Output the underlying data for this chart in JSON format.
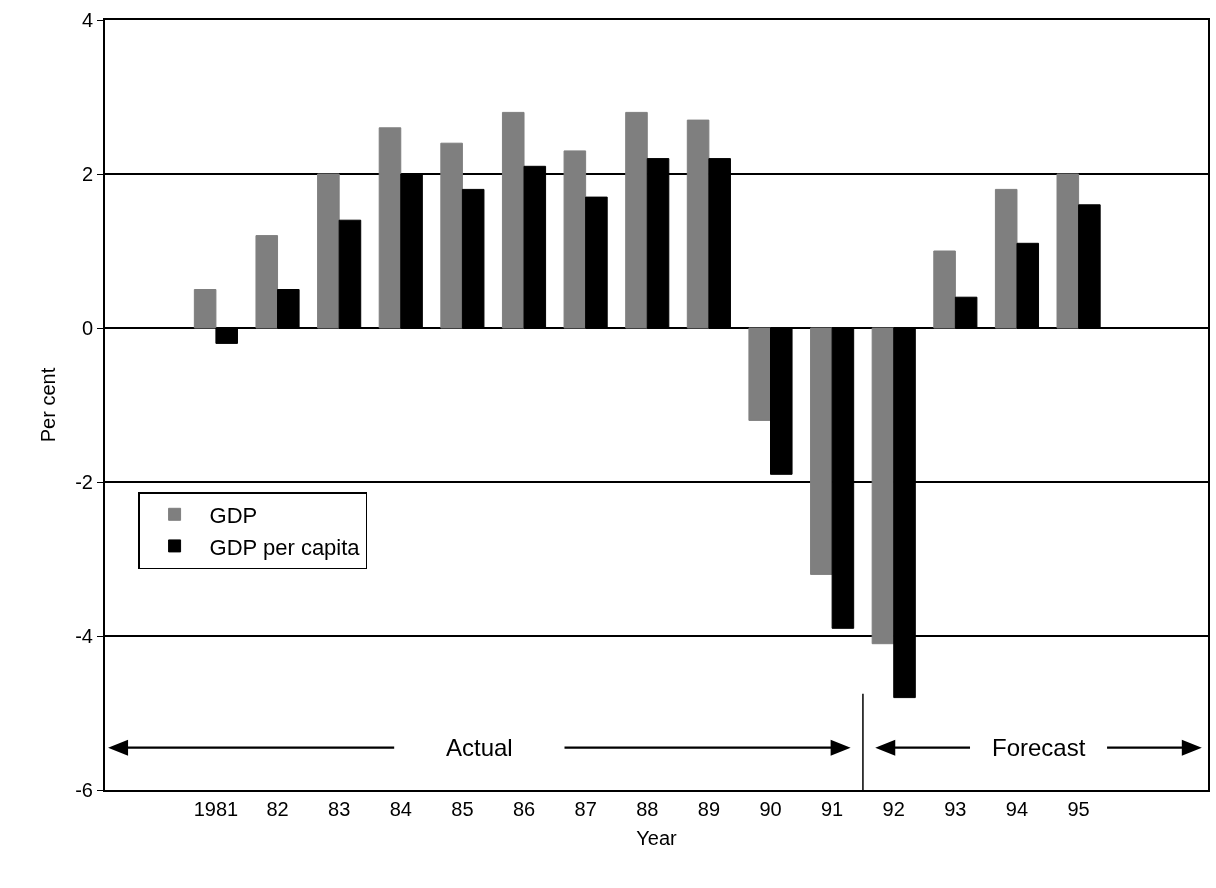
{
  "chart_data": {
    "type": "bar",
    "xlabel": "Year",
    "ylabel": "Per cent",
    "categories": [
      "1981",
      "82",
      "83",
      "84",
      "85",
      "86",
      "87",
      "88",
      "89",
      "90",
      "91",
      "92",
      "93",
      "94",
      "95"
    ],
    "series": [
      {
        "name": "GDP",
        "color": "#7f7f7f",
        "values": [
          0.5,
          1.2,
          2.0,
          2.6,
          2.4,
          2.8,
          2.3,
          2.8,
          2.7,
          -1.2,
          -3.2,
          -4.1,
          1.0,
          1.8,
          2.0
        ]
      },
      {
        "name": "GDP per capita",
        "color": "#000000",
        "values": [
          -0.2,
          0.5,
          1.4,
          2.0,
          1.8,
          2.1,
          1.7,
          2.2,
          2.2,
          -1.9,
          -3.9,
          -4.8,
          0.4,
          1.1,
          1.6
        ]
      }
    ],
    "ylim": [
      -6,
      4
    ],
    "yticks": [
      -6,
      -4,
      -2,
      0,
      2,
      4
    ],
    "grid": "y",
    "legend": "left",
    "annotations": [
      "Actual",
      "Forecast"
    ]
  }
}
